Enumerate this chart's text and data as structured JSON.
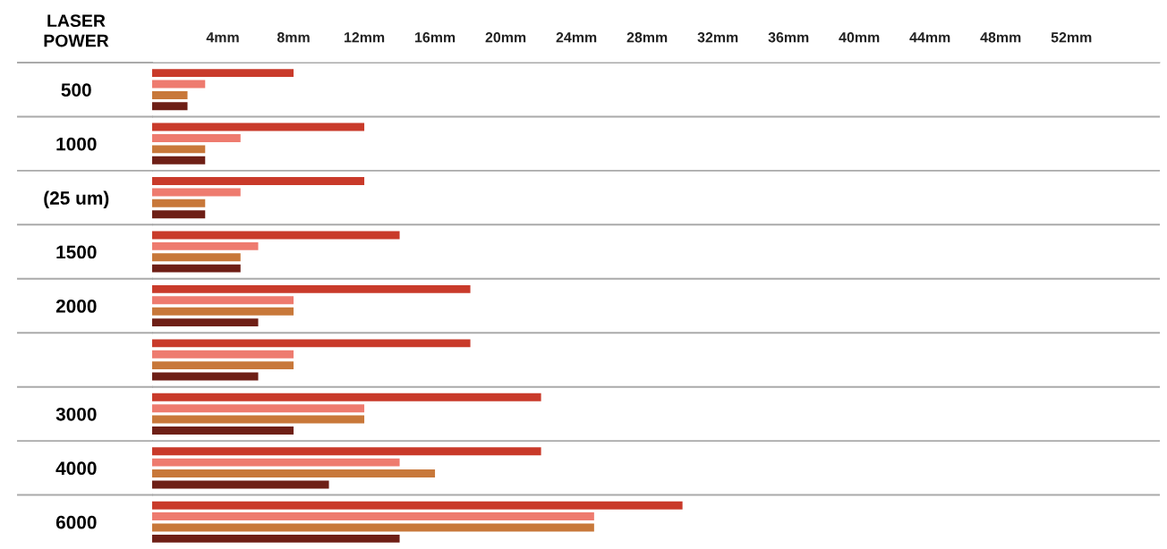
{
  "chart_data": {
    "type": "bar",
    "orientation": "horizontal",
    "ylabel": "LASER\nPOWER",
    "categories": [
      "500",
      "1000",
      "(25 um)",
      "1500",
      "2000",
      null,
      "3000",
      "4000",
      "6000"
    ],
    "series": [
      {
        "color": "#c93a2a",
        "values": [
          8,
          12,
          12,
          14,
          18,
          18,
          22,
          22,
          30
        ]
      },
      {
        "color": "#ee7b6f",
        "values": [
          3,
          5,
          5,
          6,
          8,
          8,
          12,
          14,
          25
        ]
      },
      {
        "color": "#c8783a",
        "values": [
          2,
          3,
          3,
          5,
          8,
          8,
          12,
          16,
          25
        ]
      },
      {
        "color": "#6e1f16",
        "values": [
          2,
          3,
          3,
          5,
          6,
          6,
          8,
          10,
          14
        ]
      }
    ],
    "xlim": [
      0,
      57
    ],
    "xticks": [
      {
        "value": 4,
        "label": "4mm"
      },
      {
        "value": 8,
        "label": "8mm"
      },
      {
        "value": 12,
        "label": "12mm"
      },
      {
        "value": 16,
        "label": "16mm"
      },
      {
        "value": 20,
        "label": "20mm"
      },
      {
        "value": 24,
        "label": "24mm"
      },
      {
        "value": 28,
        "label": "28mm"
      },
      {
        "value": 32,
        "label": "32mm"
      },
      {
        "value": 36,
        "label": "36mm"
      },
      {
        "value": 40,
        "label": "40mm"
      },
      {
        "value": 44,
        "label": "44mm"
      },
      {
        "value": 48,
        "label": "48mm"
      },
      {
        "value": 52,
        "label": "52mm"
      }
    ]
  }
}
